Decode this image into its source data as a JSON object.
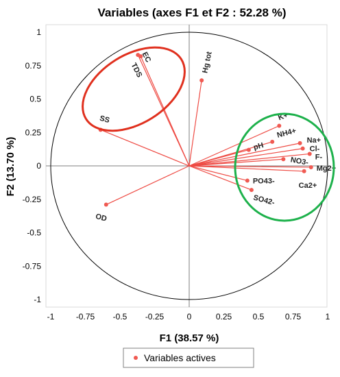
{
  "chart_data": {
    "type": "scatter",
    "title": "Variables (axes F1 et F2 : 52.28 %)",
    "xlabel": "F1 (38.57 %)",
    "ylabel": "F2 (13.70 %)",
    "xlim": [
      -1,
      1
    ],
    "ylim": [
      -1,
      1
    ],
    "xticks": [
      "-1",
      "-0.75",
      "-0.5",
      "-0.25",
      "0",
      "0.25",
      "0.5",
      "0.75",
      "1"
    ],
    "yticks": [
      "1",
      "0.75",
      "0.5",
      "0.25",
      "0",
      "-0.25",
      "-0.5",
      "-0.75",
      "-1"
    ],
    "legend": {
      "label": "Variables actives",
      "position": "bottom"
    },
    "correlation_circle": true,
    "points": [
      {
        "label": "EC",
        "x": -0.37,
        "y": 0.83
      },
      {
        "label": "TDS",
        "x": -0.35,
        "y": 0.82
      },
      {
        "label": "Hg tot",
        "x": 0.09,
        "y": 0.64
      },
      {
        "label": "SS",
        "x": -0.64,
        "y": 0.27
      },
      {
        "label": "OD",
        "x": -0.6,
        "y": -0.29
      },
      {
        "label": "K+",
        "x": 0.65,
        "y": 0.3
      },
      {
        "label": "NH4+",
        "x": 0.6,
        "y": 0.18
      },
      {
        "label": "pH",
        "x": 0.43,
        "y": 0.12
      },
      {
        "label": "Na+",
        "x": 0.8,
        "y": 0.17
      },
      {
        "label": "Cl-",
        "x": 0.82,
        "y": 0.13
      },
      {
        "label": "F-",
        "x": 0.87,
        "y": 0.09
      },
      {
        "label": "NO3-",
        "x": 0.68,
        "y": 0.05
      },
      {
        "label": "Mg2+",
        "x": 0.88,
        "y": -0.01
      },
      {
        "label": "Ca2+",
        "x": 0.83,
        "y": -0.04
      },
      {
        "label": "PO43-",
        "x": 0.42,
        "y": -0.11
      },
      {
        "label": "SO42-",
        "x": 0.45,
        "y": -0.18
      }
    ],
    "groups": [
      {
        "color": "#e0301e"
      },
      {
        "color": "#1db14b"
      }
    ],
    "point_color": "#f05a52",
    "line_color": "#ee4b44"
  }
}
